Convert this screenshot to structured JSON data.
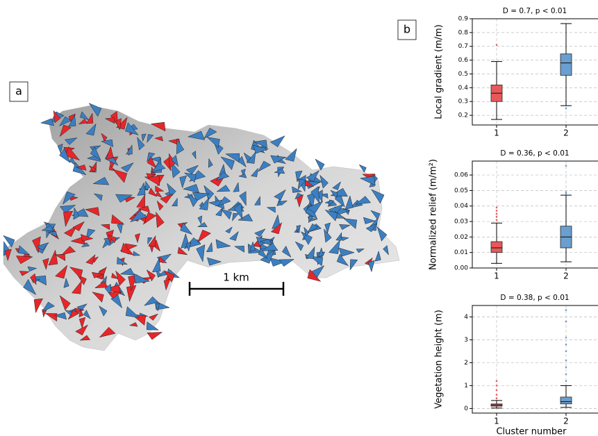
{
  "panel_labels": [
    "a",
    "b"
  ],
  "scale_label": "1 km",
  "chart_data": [
    {
      "type": "box",
      "title": "D = 0.7, p < 0.01",
      "ylabel": "Local gradient (m/m)",
      "categories": [
        "1",
        "2"
      ],
      "ylim": [
        0.13,
        0.9
      ],
      "yticks": [
        0.2,
        0.3,
        0.4,
        0.5,
        0.6,
        0.7,
        0.8,
        0.9
      ],
      "grid": true,
      "boxes": [
        {
          "color": "#e8585a",
          "whisker_low": 0.17,
          "q1": 0.3,
          "median": 0.36,
          "q3": 0.42,
          "whisker_high": 0.59,
          "outliers": [
            0.71
          ]
        },
        {
          "color": "#6a9fcf",
          "whisker_low": 0.27,
          "q1": 0.49,
          "median": 0.58,
          "q3": 0.645,
          "whisker_high": 0.865,
          "outliers": [
            0.25
          ]
        }
      ]
    },
    {
      "type": "box",
      "title": "D = 0.36, p < 0.01",
      "ylabel": "Normalized relief (m/m²)",
      "categories": [
        "1",
        "2"
      ],
      "ylim": [
        0,
        0.069
      ],
      "yticks": [
        {
          "value": 0,
          "label": "0.00"
        },
        {
          "value": 0.01,
          "label": "0.01"
        },
        {
          "value": 0.02,
          "label": "0.02"
        },
        {
          "value": 0.03,
          "label": "0.03"
        },
        {
          "value": 0.04,
          "label": "0.04"
        },
        {
          "value": 0.05,
          "label": "0.05"
        },
        {
          "value": 0.06,
          "label": "0.06"
        }
      ],
      "grid": true,
      "boxes": [
        {
          "color": "#e8585a",
          "whisker_low": 0.003,
          "q1": 0.01,
          "median": 0.013,
          "q3": 0.017,
          "whisker_high": 0.029,
          "outliers": [
            0.031,
            0.033,
            0.035,
            0.037,
            0.039
          ]
        },
        {
          "color": "#6a9fcf",
          "whisker_low": 0.004,
          "q1": 0.013,
          "median": 0.02,
          "q3": 0.027,
          "whisker_high": 0.047,
          "outliers": [
            0.048,
            0.049,
            0.066
          ]
        }
      ]
    },
    {
      "type": "box",
      "title": "D = 0.38, p < 0.01",
      "ylabel": "Vegetation height (m)",
      "xlabel": "Cluster number",
      "categories": [
        "1",
        "2"
      ],
      "ylim": [
        -0.2,
        4.5
      ],
      "yticks": [
        0,
        1,
        2,
        3,
        4
      ],
      "grid": true,
      "boxes": [
        {
          "color": "#e8585a",
          "whisker_low": 0.02,
          "q1": 0.1,
          "median": 0.15,
          "q3": 0.2,
          "whisker_high": 0.35,
          "outliers": [
            0.45,
            0.6,
            0.8,
            1.0,
            1.2
          ]
        },
        {
          "color": "#6a9fcf",
          "whisker_low": 0.05,
          "q1": 0.2,
          "median": 0.3,
          "q3": 0.5,
          "whisker_high": 1.0,
          "outliers": [
            1.2,
            1.5,
            1.8,
            2.1,
            2.5,
            2.8,
            3.1,
            3.8,
            4.3
          ]
        }
      ]
    }
  ]
}
